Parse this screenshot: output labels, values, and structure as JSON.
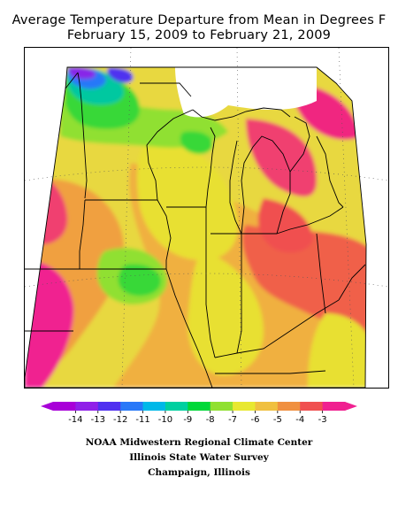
{
  "title_line1": "Average Temperature Departure from Mean in Degrees F",
  "title_line2": "February 15, 2009 to February 21, 2009",
  "legend": {
    "labels": [
      "-14",
      "-13",
      "-12",
      "-11",
      "-10",
      "-9",
      "-8",
      "-7",
      "-6",
      "-5",
      "-4",
      "-3"
    ],
    "colors": [
      "#a800d8",
      "#9020e8",
      "#5030f0",
      "#2878f8",
      "#00b8e8",
      "#00d0a0",
      "#00d838",
      "#90e030",
      "#e8e830",
      "#f0c040",
      "#f09040",
      "#f05050",
      "#f02090"
    ]
  },
  "credits": {
    "line1": "NOAA Midwestern Regional Climate Center",
    "line2": "Illinois State Water Survey",
    "line3": "Champaign, Illinois"
  }
}
